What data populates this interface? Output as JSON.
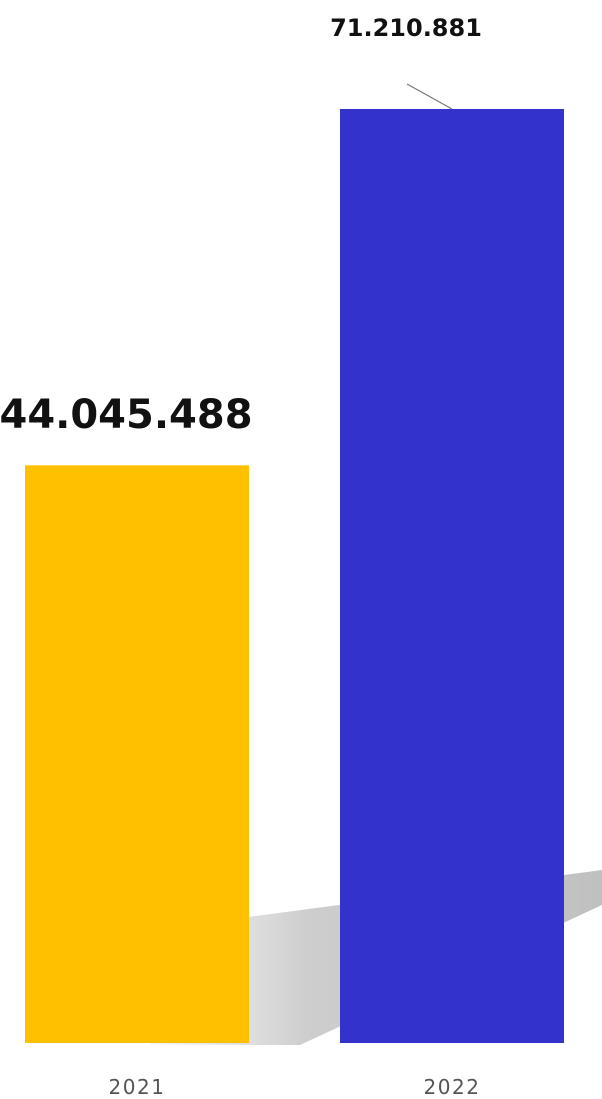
{
  "chart_data": {
    "type": "bar",
    "title": "",
    "xlabel": "",
    "ylabel": "",
    "categories": [
      "2021",
      "2022"
    ],
    "values": [
      44045488,
      71210881
    ],
    "value_labels": [
      "44.045.488",
      "71.210.881"
    ],
    "ylim": [
      0,
      76000000
    ],
    "grid": false,
    "legend": "none",
    "colors": [
      "#FFC000",
      "#3333CC"
    ]
  }
}
